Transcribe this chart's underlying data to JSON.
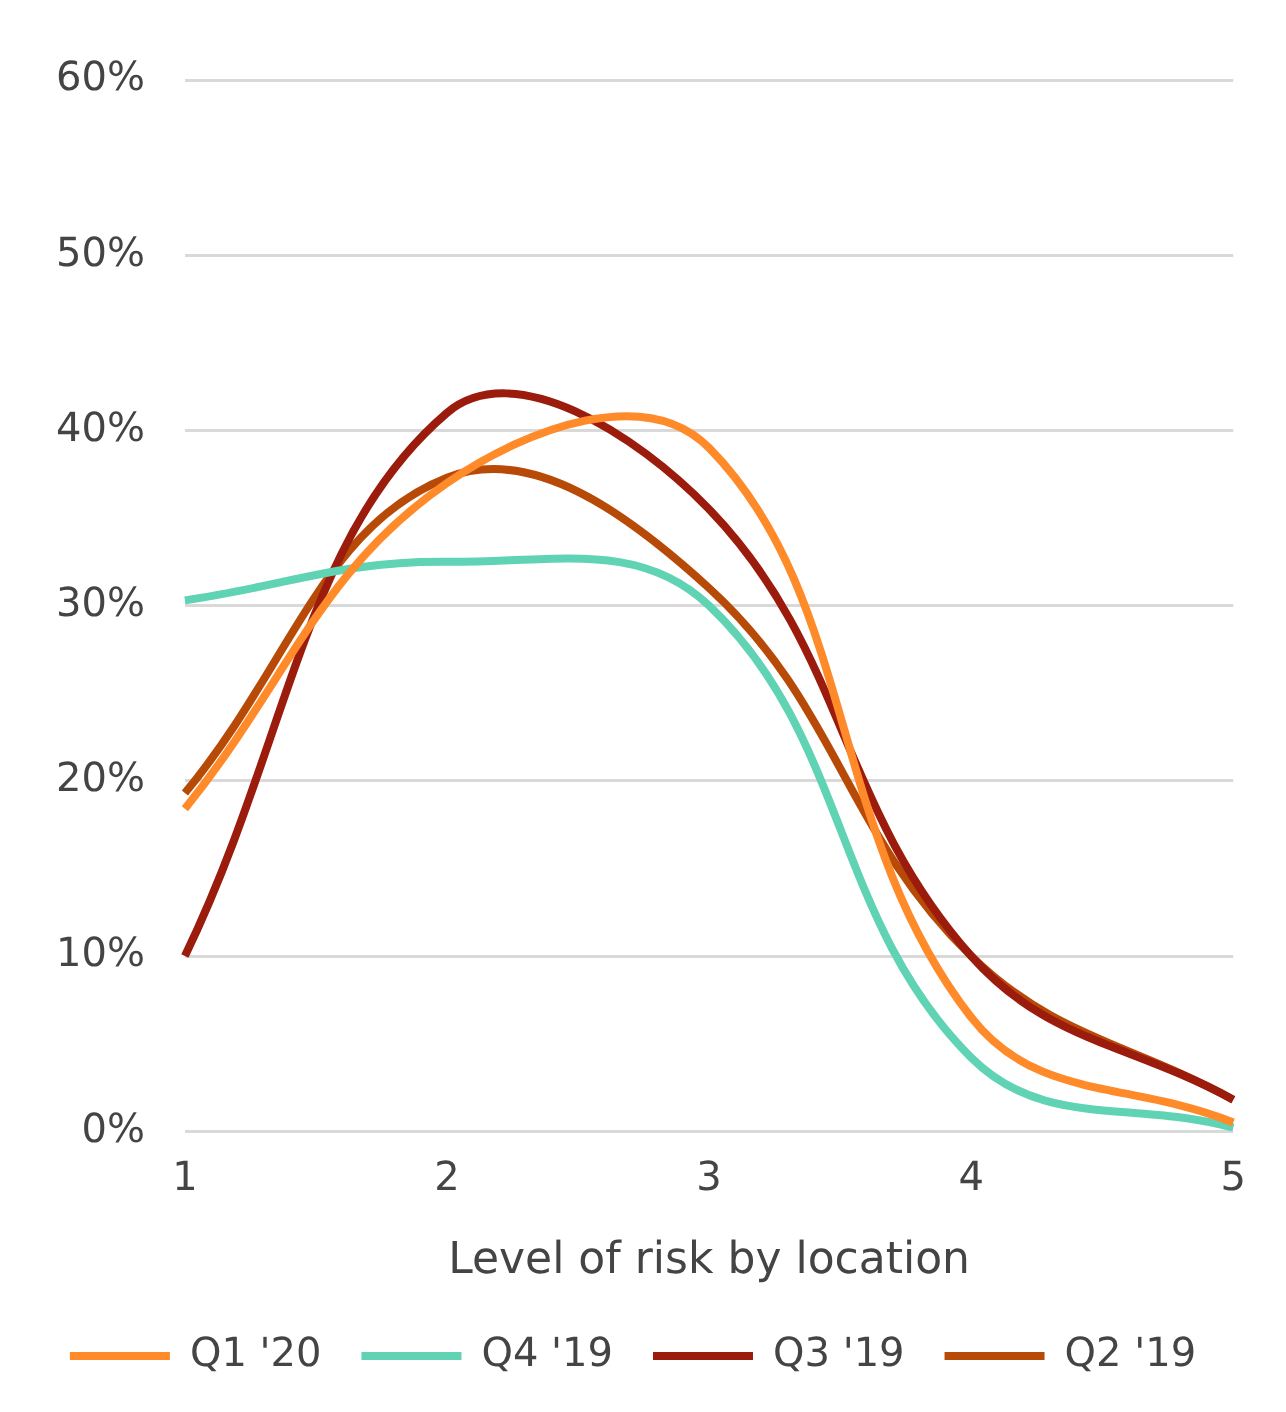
{
  "chart_data": {
    "type": "line",
    "xlabel": "Level of risk by location",
    "categories": [
      "1",
      "2",
      "3",
      "4",
      "5"
    ],
    "series": [
      {
        "name": "Q1 '20",
        "color": "#ff8a2a",
        "values": [
          18.4,
          37,
          39,
          6.5,
          0.5
        ]
      },
      {
        "name": "Q4 '19",
        "color": "#5fd3b3",
        "values": [
          30.3,
          32.5,
          30,
          4.2,
          0.2
        ]
      },
      {
        "name": "Q3 '19",
        "color": "#9b1c0c",
        "values": [
          10,
          41,
          35.5,
          10,
          1.8
        ]
      },
      {
        "name": "Q2 '19",
        "color": "#b84a08",
        "values": [
          19.3,
          37.3,
          31,
          10,
          1.8
        ]
      }
    ],
    "ylim": [
      0,
      60
    ],
    "yticks": [
      {
        "value": 0,
        "label": "0%"
      },
      {
        "value": 10,
        "label": "10%"
      },
      {
        "value": 20,
        "label": "20%"
      },
      {
        "value": 30,
        "label": "30%"
      },
      {
        "value": 40,
        "label": "40%"
      },
      {
        "value": 50,
        "label": "50%"
      },
      {
        "value": 60,
        "label": "60%"
      }
    ],
    "grid": "y",
    "legend": "bottom",
    "marker": "none",
    "line_style": "solid"
  }
}
